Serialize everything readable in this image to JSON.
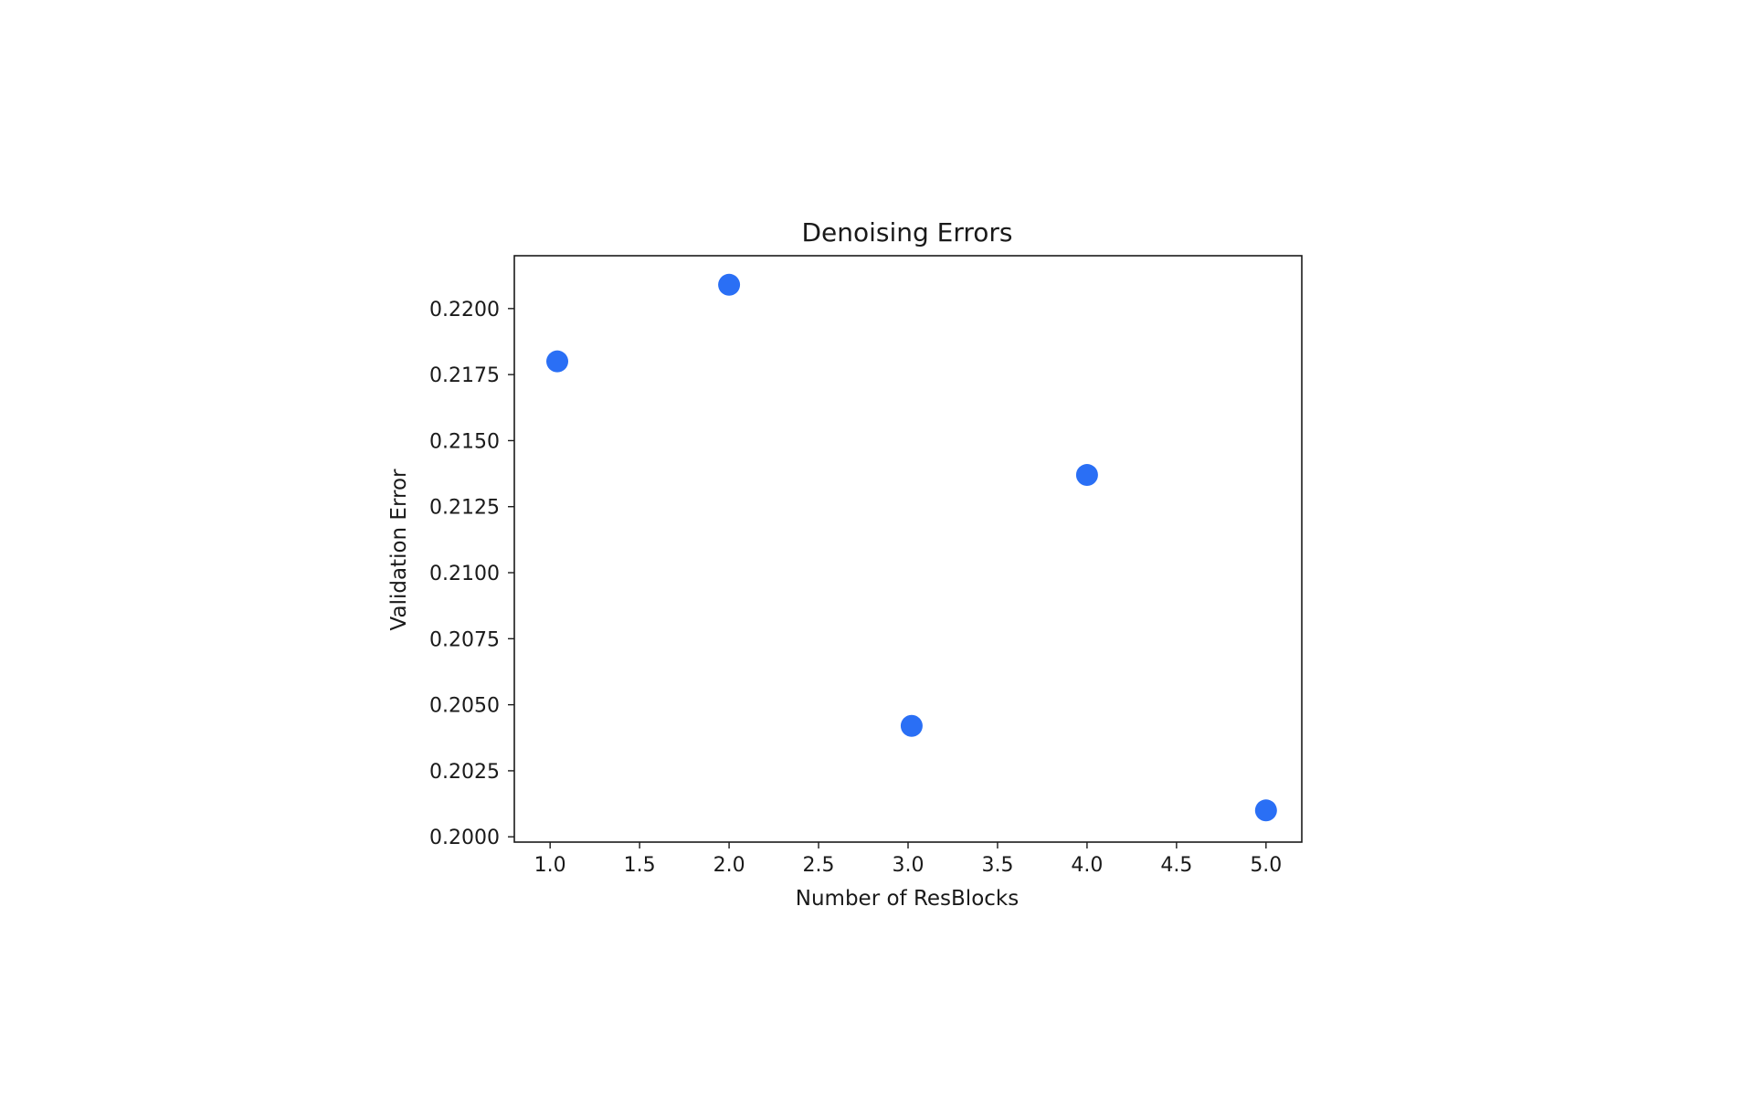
{
  "chart_data": {
    "type": "scatter",
    "title": "Denoising Errors",
    "xlabel": "Number of ResBlocks",
    "ylabel": "Validation Error",
    "xlim": [
      0.8,
      5.2
    ],
    "ylim": [
      0.1998,
      0.222
    ],
    "xticks": [
      "1.0",
      "1.5",
      "2.0",
      "2.5",
      "3.0",
      "3.5",
      "4.0",
      "4.5",
      "5.0"
    ],
    "yticks": [
      "0.2000",
      "0.2025",
      "0.2050",
      "0.2075",
      "0.2100",
      "0.2125",
      "0.2150",
      "0.2175",
      "0.2200"
    ],
    "grid": false,
    "legend": "none",
    "marker_color": "#2a6ff5",
    "series": [
      {
        "x": [
          1.04,
          2.0,
          3.02,
          4.0,
          5.0
        ],
        "y": [
          0.218,
          0.2209,
          0.2042,
          0.2137,
          0.201
        ]
      }
    ]
  }
}
